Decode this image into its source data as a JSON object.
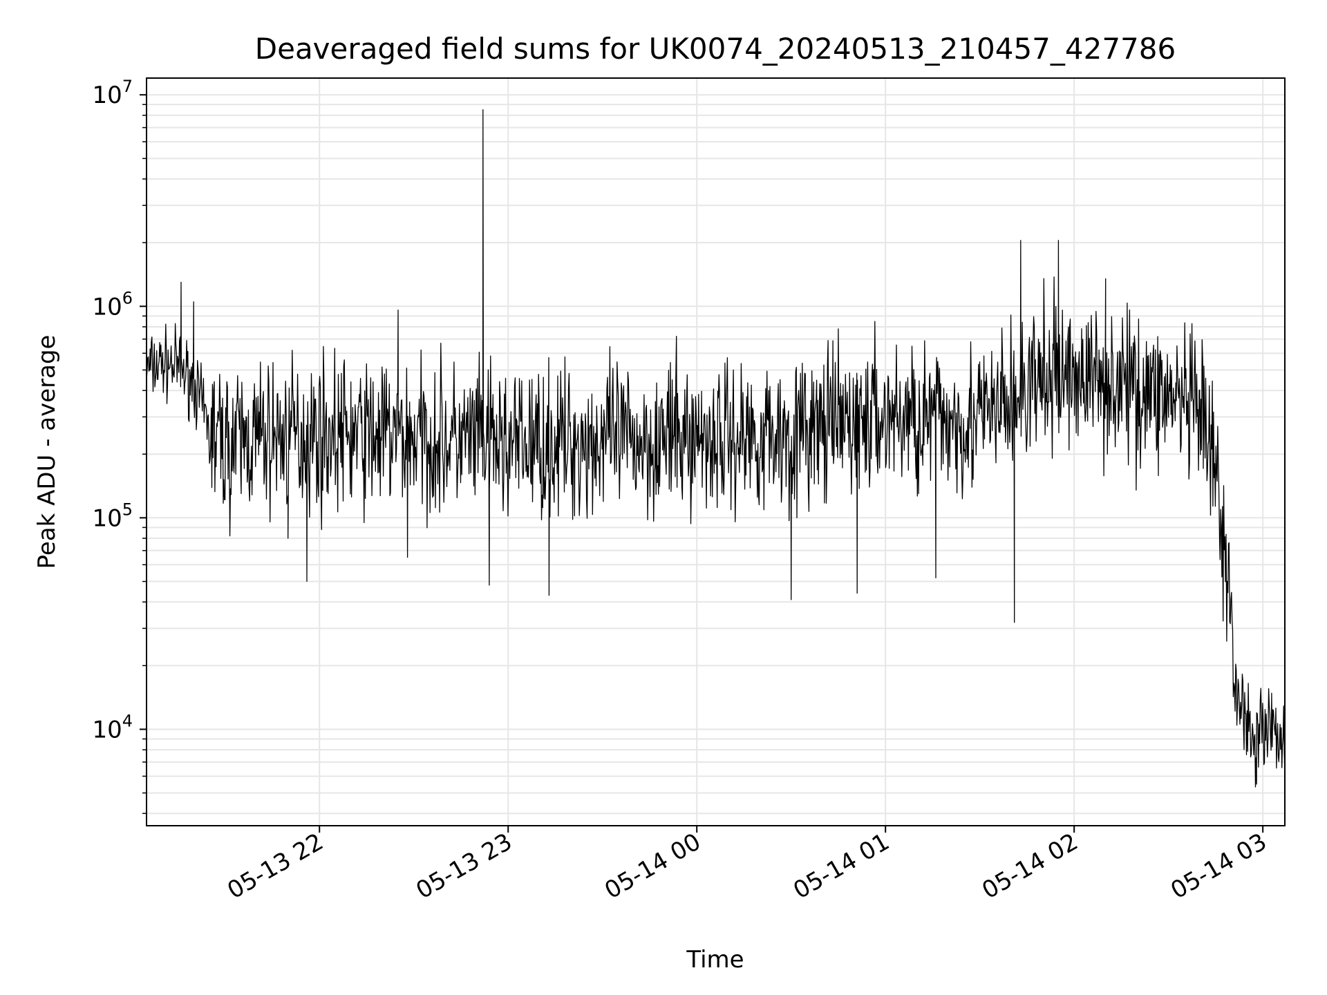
{
  "chart_data": {
    "type": "line",
    "title": "Deaveraged field sums for UK0074_20240513_210457_427786",
    "xlabel": "Time",
    "ylabel": "Peak ADU - average",
    "yscale": "log",
    "ylim": [
      3500,
      12000000
    ],
    "xlim": [
      "05-13 21:05",
      "05-14 03:07"
    ],
    "grid": true,
    "line_color": "#000000",
    "grid_color": "#e6e6e6",
    "x_ticks": [
      {
        "value": "05-13 22:00",
        "label": "05-13 22"
      },
      {
        "value": "05-13 23:00",
        "label": "05-13 23"
      },
      {
        "value": "05-14 00:00",
        "label": "05-14 00"
      },
      {
        "value": "05-14 01:00",
        "label": "05-14 01"
      },
      {
        "value": "05-14 02:00",
        "label": "05-14 02"
      },
      {
        "value": "05-14 03:00",
        "label": "05-14 03"
      }
    ],
    "y_ticks": [
      {
        "value": 10000,
        "base": "10",
        "exp": "4"
      },
      {
        "value": 100000,
        "base": "10",
        "exp": "5"
      },
      {
        "value": 1000000,
        "base": "10",
        "exp": "6"
      },
      {
        "value": 10000000,
        "base": "10",
        "exp": "7"
      }
    ],
    "series": [
      {
        "profile": [
          [
            "05-13 21:05",
            500000
          ],
          [
            "05-13 21:10",
            540000
          ],
          [
            "05-13 21:15",
            520000
          ],
          [
            "05-13 21:20",
            440000
          ],
          [
            "05-13 21:25",
            260000
          ],
          [
            "05-13 21:30",
            220000
          ],
          [
            "05-13 21:35",
            230000
          ],
          [
            "05-13 21:45",
            240000
          ],
          [
            "05-13 22:00",
            250000
          ],
          [
            "05-13 22:30",
            240000
          ],
          [
            "05-13 23:00",
            220000
          ],
          [
            "05-13 23:30",
            230000
          ],
          [
            "05-14 00:00",
            240000
          ],
          [
            "05-14 00:30",
            250000
          ],
          [
            "05-14 01:00",
            300000
          ],
          [
            "05-14 01:30",
            290000
          ],
          [
            "05-14 01:40",
            350000
          ],
          [
            "05-14 01:50",
            450000
          ],
          [
            "05-14 02:00",
            480000
          ],
          [
            "05-14 02:30",
            380000
          ],
          [
            "05-14 02:40",
            300000
          ],
          [
            "05-14 02:45",
            160000
          ],
          [
            "05-14 02:48",
            60000
          ],
          [
            "05-14 02:52",
            15000
          ],
          [
            "05-14 02:57",
            9000
          ],
          [
            "05-14 03:00",
            11000
          ],
          [
            "05-14 03:07",
            9000
          ]
        ],
        "spikes": [
          [
            "05-13 21:16",
            1300000
          ],
          [
            "05-13 21:20",
            1050000
          ],
          [
            "05-13 21:50",
            80000
          ],
          [
            "05-13 21:56",
            50000
          ],
          [
            "05-13 22:25",
            960000
          ],
          [
            "05-13 22:28",
            65000
          ],
          [
            "05-13 22:52",
            8500000
          ],
          [
            "05-13 22:54",
            48000
          ],
          [
            "05-13 23:13",
            43000
          ],
          [
            "05-14 00:30",
            41000
          ],
          [
            "05-14 00:51",
            44000
          ],
          [
            "05-14 01:16",
            52000
          ],
          [
            "05-14 01:41",
            32000
          ],
          [
            "05-14 01:43",
            2050000
          ],
          [
            "05-14 01:55",
            2050000
          ],
          [
            "05-14 02:10",
            1350000
          ],
          [
            "05-14 02:58",
            5500
          ],
          [
            "05-14 03:07",
            4900
          ]
        ]
      }
    ]
  }
}
